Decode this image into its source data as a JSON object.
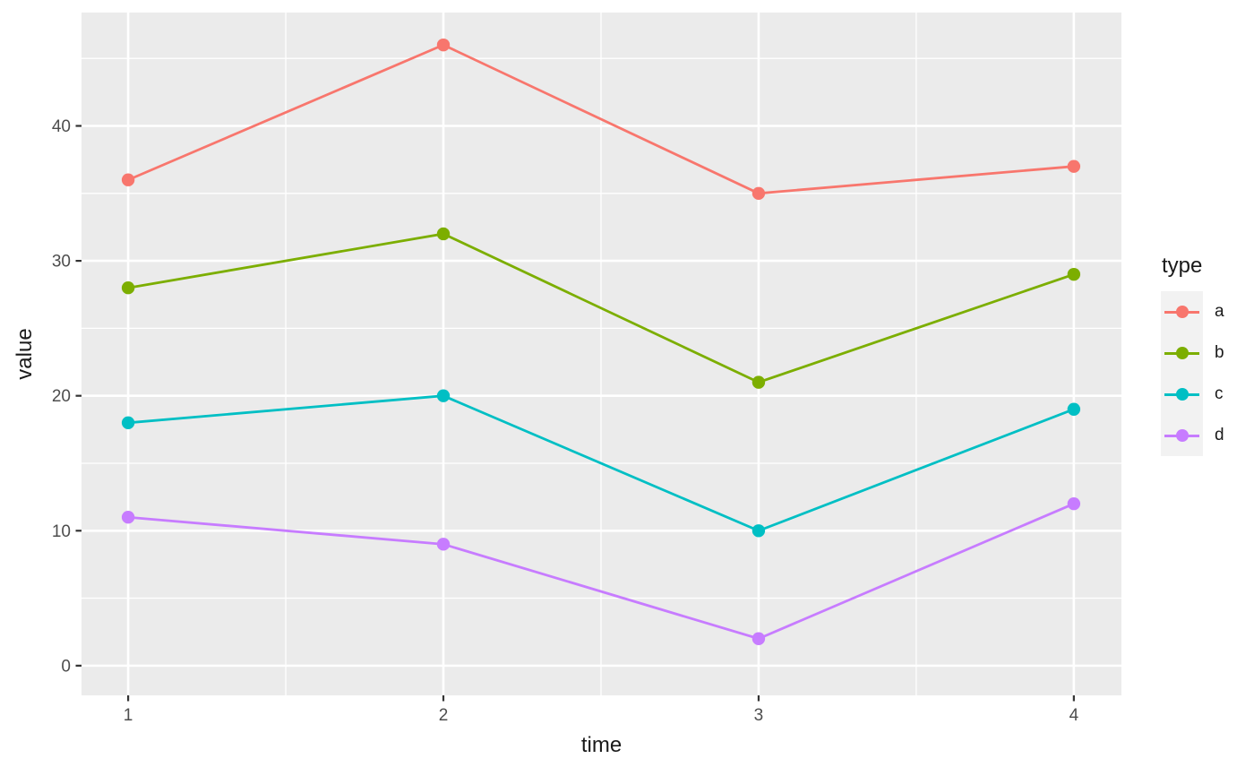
{
  "chart_data": {
    "type": "line",
    "title": "",
    "xlabel": "time",
    "ylabel": "value",
    "legend_title": "type",
    "legend_position": "right",
    "x": [
      1,
      2,
      3,
      4
    ],
    "series": [
      {
        "name": "a",
        "color": "#F8766D",
        "values": [
          36,
          46,
          35,
          37
        ]
      },
      {
        "name": "b",
        "color": "#7CAE00",
        "values": [
          28,
          32,
          21,
          29
        ]
      },
      {
        "name": "c",
        "color": "#00BFC4",
        "values": [
          18,
          20,
          10,
          19
        ]
      },
      {
        "name": "d",
        "color": "#C77CFF",
        "values": [
          11,
          9,
          2,
          12
        ]
      }
    ],
    "x_ticks": [
      1,
      2,
      3,
      4
    ],
    "y_ticks": [
      0,
      10,
      20,
      30,
      40
    ],
    "x_minor_ticks": [
      1.5,
      2.5,
      3.5
    ],
    "y_minor_ticks": [
      5,
      15,
      25,
      35,
      45
    ],
    "xlim": [
      0.852,
      4.151
    ],
    "ylim": [
      -2.2,
      48.4
    ],
    "grid": true,
    "panel_bg": "#EBEBEB",
    "grid_color": "#FFFFFF",
    "legend_key_bg": "#F2F2F2",
    "tick_color": "#333333",
    "tick_label_color": "#4D4D4D"
  }
}
